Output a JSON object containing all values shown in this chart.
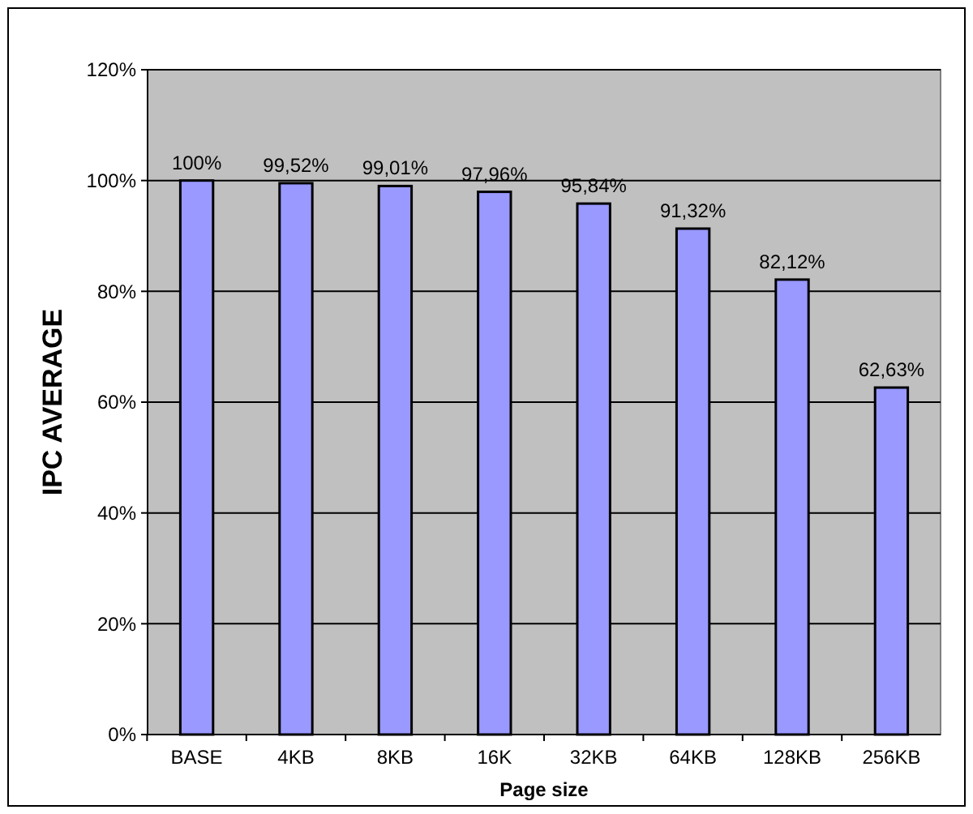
{
  "chart_data": {
    "type": "bar",
    "xlabel": "Page size",
    "ylabel": "IPC AVERAGE",
    "categories": [
      "BASE",
      "4KB",
      "8KB",
      "16K",
      "32KB",
      "64KB",
      "128KB",
      "256KB"
    ],
    "values": [
      100,
      99.52,
      99.01,
      97.96,
      95.84,
      91.32,
      82.12,
      62.63
    ],
    "value_labels": [
      "100%",
      "99,52%",
      "99,01%",
      "97,96%",
      "95,84%",
      "91,32%",
      "82,12%",
      "62,63%"
    ],
    "color": "#9999ff",
    "ylim": [
      0,
      120
    ],
    "yticks": [
      {
        "value": 0,
        "label": "0%"
      },
      {
        "value": 20,
        "label": "20%"
      },
      {
        "value": 40,
        "label": "40%"
      },
      {
        "value": 60,
        "label": "60%"
      },
      {
        "value": 80,
        "label": "80%"
      },
      {
        "value": 100,
        "label": "100%"
      },
      {
        "value": 120,
        "label": "120%"
      }
    ],
    "grid": "y"
  }
}
